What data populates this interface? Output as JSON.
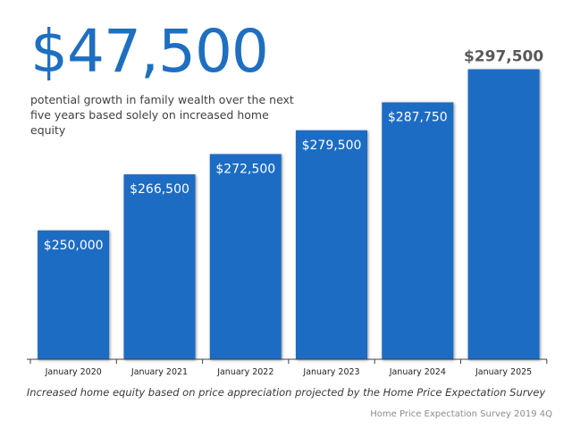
{
  "headline": "$47,500",
  "subtitle": "potential growth in family wealth over the next five years based solely on increased home equity",
  "footnote": "Increased home equity based on price appreciation projected by the Home Price Expectation Survey",
  "source": "Home Price Expectation Survey 2019 4Q",
  "colors": {
    "bar": "#1a6cc4",
    "headline": "#1f6fc1",
    "axis": "#404040",
    "top_label": "#595959"
  },
  "chart_data": {
    "type": "bar",
    "title": "",
    "xlabel": "",
    "ylabel": "",
    "categories": [
      "January 2020",
      "January 2021",
      "January 2022",
      "January 2023",
      "January 2024",
      "January 2025"
    ],
    "values": [
      250000,
      266500,
      272500,
      279500,
      287750,
      297500
    ],
    "labels": [
      "$250,000",
      "$266,500",
      "$272,500",
      "$279,500",
      "$287,750",
      "$297,500"
    ],
    "ylim": [
      212000,
      300000
    ],
    "grid": false,
    "legend": "none"
  }
}
